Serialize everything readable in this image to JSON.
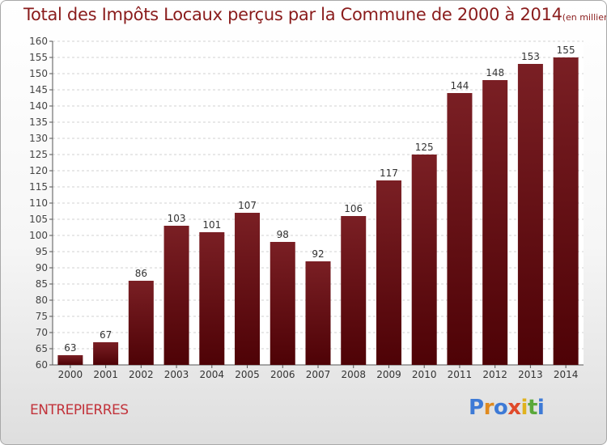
{
  "chart_data": {
    "type": "bar",
    "title": "Total des Impôts Locaux perçus par la Commune de 2000 à 2014",
    "subtitle": "(en milliers d'€)",
    "categories": [
      "2000",
      "2001",
      "2002",
      "2003",
      "2004",
      "2005",
      "2006",
      "2007",
      "2008",
      "2009",
      "2010",
      "2011",
      "2012",
      "2013",
      "2014"
    ],
    "values": [
      63,
      67,
      86,
      103,
      101,
      107,
      98,
      92,
      106,
      117,
      125,
      144,
      148,
      153,
      155
    ],
    "ylim": [
      60,
      160
    ],
    "ytick_step": 5,
    "grid": true,
    "bar_color": "#7a1f24",
    "bar_color_dark": "#4e0206"
  },
  "commune": "ENTREPIERRES",
  "logo": {
    "letters": [
      {
        "ch": "P",
        "color": "#3d7ad6"
      },
      {
        "ch": "r",
        "color": "#e08a1e"
      },
      {
        "ch": "o",
        "color": "#3d7ad6"
      },
      {
        "ch": "x",
        "color": "#e04a2a"
      },
      {
        "ch": "i",
        "color": "#e0b21e"
      },
      {
        "ch": "t",
        "color": "#5aa83a"
      },
      {
        "ch": "i",
        "color": "#3d7ad6"
      }
    ]
  }
}
